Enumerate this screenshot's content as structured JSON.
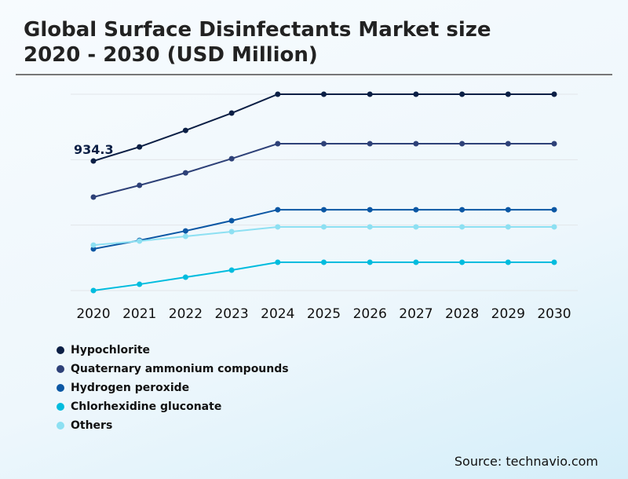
{
  "title_line1": "Global Surface Disinfectants Market size",
  "title_line2": "2020 - 2030 (USD Million)",
  "source": "Source: technavio.com",
  "chart_data": {
    "type": "line",
    "title": "Global Surface Disinfectants Market size 2020 - 2030 (USD Million)",
    "x": [
      "2020",
      "2021",
      "2022",
      "2023",
      "2024",
      "2025",
      "2026",
      "2027",
      "2028",
      "2029",
      "2030"
    ],
    "ylim": [
      0,
      1416
    ],
    "grid": true,
    "legend": "bottom-left",
    "annotation": "934.3",
    "series": [
      {
        "name": "Hypochlorite",
        "color": "#0b1f45",
        "values": [
          934.3,
          1036,
          1155,
          1280,
          1416,
          1416,
          1416,
          1416,
          1416,
          1416,
          1416
        ]
      },
      {
        "name": "Quaternary ammonium compounds",
        "color": "#2e4178",
        "values": [
          674,
          759,
          849,
          951,
          1059,
          1059,
          1059,
          1059,
          1059,
          1059,
          1059
        ]
      },
      {
        "name": "Hydrogen peroxide",
        "color": "#0b57a4",
        "values": [
          300,
          362,
          430,
          504,
          583,
          583,
          583,
          583,
          583,
          583,
          583
        ]
      },
      {
        "name": "Chlorhexidine gluconate",
        "color": "#00bcde",
        "values": [
          0,
          45,
          96,
          147,
          204,
          204,
          204,
          204,
          204,
          204,
          204
        ]
      },
      {
        "name": "Others",
        "color": "#8de0f2",
        "values": [
          328,
          357,
          391,
          425,
          459,
          459,
          459,
          459,
          459,
          459,
          459
        ]
      }
    ]
  }
}
